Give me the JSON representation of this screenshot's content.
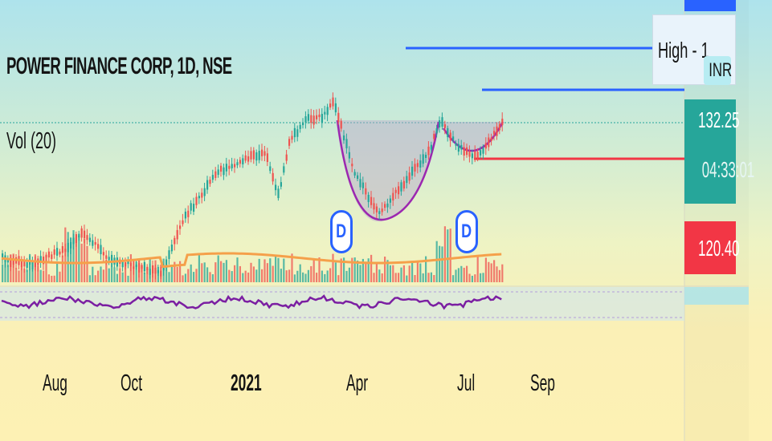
{
  "chart": {
    "symbol_title": "POWER FINANCE CORP, 1D, NSE",
    "indicator_label": "Vol (20)"
  },
  "price_axis": {
    "current_price": "132.25",
    "countdown": "04:33:01",
    "level_price": "120.40",
    "high_label": "High - 1",
    "currency": "INR"
  },
  "time_axis": {
    "labels": [
      "Aug",
      "Oct",
      "2021",
      "Apr",
      "Jul",
      "Sep"
    ]
  },
  "events": {
    "dividend_marker": "D"
  },
  "colors": {
    "up": "#26a69a",
    "down": "#ef5350",
    "accent_blue": "#2962ff",
    "pattern_curve": "#9c27b0",
    "volume_ma": "#f5a04a",
    "rsi_line": "#7b1fa2",
    "current_price_bg": "#26a69a",
    "level_price_bg": "#f23645",
    "resistance_line": "#f23645"
  }
}
